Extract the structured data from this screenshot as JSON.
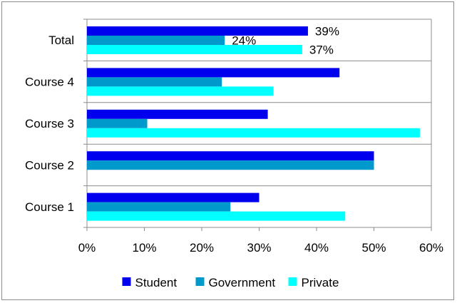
{
  "chart_data": {
    "type": "bar",
    "orientation": "horizontal",
    "categories": [
      "Course 1",
      "Course 2",
      "Course 3",
      "Course 4",
      "Total"
    ],
    "series": [
      {
        "name": "Student",
        "color": "#0000ee",
        "values": [
          30,
          50,
          31.5,
          44,
          38.5
        ]
      },
      {
        "name": "Government",
        "color": "#0099cc",
        "values": [
          25,
          50,
          10.5,
          23.5,
          24
        ]
      },
      {
        "name": "Private",
        "color": "#00ffff",
        "values": [
          45,
          0,
          58,
          32.5,
          37.5
        ]
      }
    ],
    "data_labels": [
      {
        "category": "Total",
        "series": "Student",
        "text": "39%"
      },
      {
        "category": "Total",
        "series": "Government",
        "text": "24%"
      },
      {
        "category": "Total",
        "series": "Private",
        "text": "37%"
      }
    ],
    "xlim": [
      0,
      60
    ],
    "xticks": [
      "0%",
      "10%",
      "20%",
      "30%",
      "40%",
      "50%",
      "60%"
    ],
    "xtick_values": [
      0,
      10,
      20,
      30,
      40,
      50,
      60
    ],
    "title": "",
    "xlabel": "",
    "ylabel": "",
    "grid": "horizontal category separators",
    "legend_position": "bottom"
  }
}
